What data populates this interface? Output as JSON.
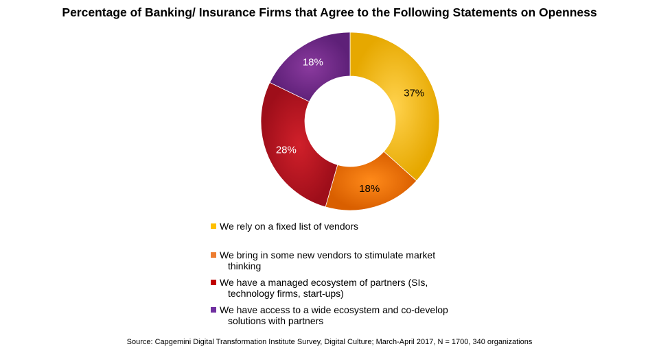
{
  "chart_data": {
    "type": "pie",
    "variant": "donut",
    "title": "Percentage of Banking/ Insurance Firms that Agree to the Following Statements on Openness",
    "categories": [
      "We rely on a fixed list of vendors",
      "We bring in some new vendors to stimulate market thinking",
      "We have a managed ecosystem of partners (SIs, technology firms, start-ups)",
      "We have access to a wide ecosystem and co-develop solutions with partners"
    ],
    "values": [
      37,
      18,
      28,
      18
    ],
    "labels": [
      "37%",
      "18%",
      "28%",
      "18%"
    ],
    "colors": [
      "#FFC000",
      "#ED7D31",
      "#C00000",
      "#7030A0"
    ],
    "legend_position": "bottom"
  },
  "legend": {
    "items": [
      {
        "line1": "We rely on a fixed list of vendors",
        "line2": ""
      },
      {
        "line1": "We bring in some new vendors to stimulate market",
        "line2": "thinking"
      },
      {
        "line1": "We have a managed ecosystem of partners (SIs,",
        "line2": "technology firms, start-ups)"
      },
      {
        "line1": "We have access to a wide ecosystem and co-develop",
        "line2": "solutions with partners"
      }
    ]
  },
  "source": "Source: Capgemini Digital Transformation Institute Survey, Digital Culture; March-April 2017, N = 1700, 340 organizations"
}
